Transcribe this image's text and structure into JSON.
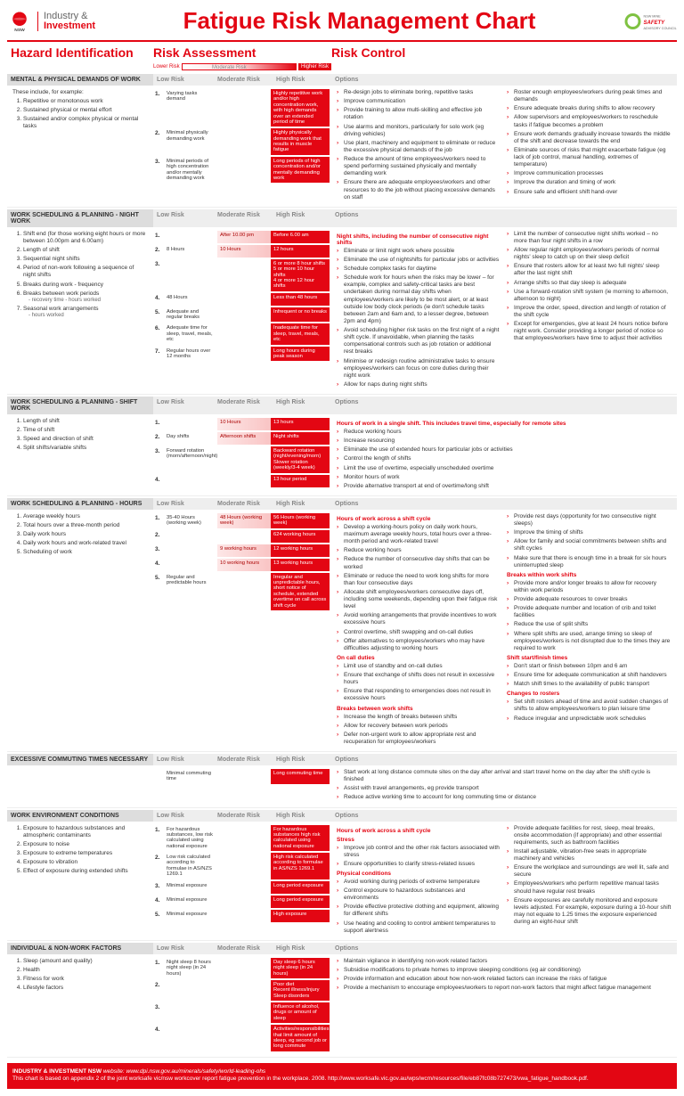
{
  "header": {
    "org_line1": "Industry &",
    "org_line2": "Investment",
    "gov": "NSW",
    "title": "Fatigue Risk Management Chart",
    "council": "NSW MINE SAFETY ADVISORY COUNCIL"
  },
  "section_labels": {
    "hi": "Hazard Identification",
    "ra": "Risk Assessment",
    "rc": "Risk Control",
    "low": "Lower Risk",
    "mod": "Moderate Risk",
    "high": "Higher Risk",
    "col_low": "Low Risk",
    "col_mod": "Moderate Risk",
    "col_high": "High Risk",
    "options": "Options"
  },
  "cats": [
    {
      "name": "MENTAL & PHYSICAL DEMANDS OF WORK",
      "hi_intro": "These include, for example:",
      "hi": [
        {
          "t": "Repetitive or monotonous work"
        },
        {
          "t": "Sustained physical or mental effort"
        },
        {
          "t": "Sustained and/or complex physical or mental tasks"
        }
      ],
      "ra": [
        {
          "n": "1.",
          "low": "Varying tasks demand",
          "mod": "",
          "high": "Highly repetitive work and/or high concentration work, with high demands over an extended period of time"
        },
        {
          "n": "2.",
          "low": "Minimal physically demanding work",
          "mod": "",
          "high": "Highly physically demanding work that results in muscle fatigue"
        },
        {
          "n": "3.",
          "low": "Minimal periods of high concentration and/or mentally demanding work",
          "mod": "",
          "high": "Long periods of high concentration and/or mentally demanding work"
        }
      ],
      "rc_l": [
        "Re-design jobs to eliminate boring, repetitive tasks",
        "Improve communication",
        "Provide training to allow multi-skilling and effective job rotation",
        "Use alarms and monitors, particularly for solo work (eg driving vehicles)",
        "Use plant, machinery and equipment to eliminate or reduce the excessive physical demands of the job",
        "Reduce the amount of time employees/workers need to spend performing sustained physically and mentally demanding work",
        "Ensure there are adequate employees/workers and other resources to do the job without placing excessive demands on staff"
      ],
      "rc_r": [
        "Roster enough employees/workers during peak times and demands",
        "Ensure adequate breaks during shifts to allow recovery",
        "Allow supervisors and employees/workers to reschedule tasks if fatigue becomes a problem",
        "Ensure work demands gradually increase towards the middle of the shift and decrease towards the end",
        "Eliminate sources of risks that might exacerbate fatigue (eg lack of job control, manual handling, extremes of temperature)",
        "Improve communication processes",
        "Improve the duration and timing of work",
        "Ensure safe and efficient shift hand-over"
      ]
    },
    {
      "name": "WORK SCHEDULING & PLANNING - NIGHT WORK",
      "hi": [
        {
          "t": "Shift end (for those working eight hours or more between 10.00pm and 6.00am)"
        },
        {
          "t": "Length of shift"
        },
        {
          "t": "Sequential night shifts"
        },
        {
          "t": "Period of non-work following a sequence of night shifts"
        },
        {
          "t": "Breaks during work - frequency"
        },
        {
          "t": "Breaks between work periods",
          "sub": "- recovery time\n- hours worked"
        },
        {
          "t": "Seasonal work arrangements",
          "sub": "- hours worked"
        }
      ],
      "ra": [
        {
          "n": "1.",
          "low": "",
          "mod": "After 10.00 pm",
          "high": "Before 6.00 am"
        },
        {
          "n": "2.",
          "low": "8 Hours",
          "mod": "10 Hours",
          "high": "12 hours"
        },
        {
          "n": "3.",
          "low": "",
          "mod": "",
          "high": "6 or more 8 hour shifts\n5 or more 10 hour shifts\n4 or more 12 hour shifts"
        },
        {
          "n": "4.",
          "low": "48 Hours",
          "mod": "",
          "high": "Less than 48 hours"
        },
        {
          "n": "5.",
          "low": "Adequate and regular breaks",
          "mod": "",
          "high": "Infrequent or no breaks"
        },
        {
          "n": "6.",
          "low": "Adequate time for sleep, travel, meals, etc",
          "mod": "",
          "high": "Inadequate time for sleep, travel, meals, etc"
        },
        {
          "n": "7.",
          "low": "Regular hours over 12 months",
          "mod": "",
          "high": "Long hours during peak season"
        }
      ],
      "rc_sub_l": "Night shifts, including the number of consecutive night shifts",
      "rc_l": [
        "Eliminate or limit night work where possible",
        "Eliminate the use of nightshifts for particular jobs or activities",
        "Schedule complex tasks for daytime",
        "Schedule work for hours when the risks may be lower – for example, complex and safety-critical tasks are best undertaken during normal day shifts when employees/workers are likely to be most alert, or at least outside low body clock periods (ie don't schedule tasks between 2am and 6am and, to a lesser degree, between 2pm and 4pm)",
        "Avoid scheduling higher risk tasks on the first night of a night shift cycle. If unavoidable, when planning the tasks compensational controls such as job rotation or additional rest breaks",
        "Minimise or redesign routine administrative tasks to ensure employees/workers can focus on core duties during their night work",
        "Allow for naps during night shifts"
      ],
      "rc_r": [
        "Limit the number of consecutive night shifts worked – no more than four night shifts in a row",
        "Allow regular night employees/workers periods of normal nights' sleep to catch up on their sleep deficit",
        "Ensure that rosters allow for at least two full nights' sleep after the last night shift",
        "Arrange shifts so that day sleep is adequate",
        "Use a forward-rotation shift system (ie morning to afternoon, afternoon to night)",
        "Improve the order, speed, direction and length of rotation of the shift cycle",
        "Except for emergencies, give at least 24 hours notice before night work. Consider providing a longer period of notice so that employees/workers have time to adjust their activities"
      ]
    },
    {
      "name": "WORK SCHEDULING & PLANNING - SHIFT WORK",
      "hi": [
        {
          "t": "Length of shift"
        },
        {
          "t": "Time of shift"
        },
        {
          "t": "Speed and direction of shift"
        },
        {
          "t": "Split shifts/variable shifts"
        }
      ],
      "ra": [
        {
          "n": "1.",
          "low": "",
          "mod": "10 Hours",
          "high": "13 hours"
        },
        {
          "n": "2.",
          "low": "Day shifts",
          "mod": "Afternoon shifts",
          "high": "Night shifts"
        },
        {
          "n": "3.",
          "low": "Forward rotation (morn/afternoon/night)",
          "mod": "",
          "high": "Backward rotation (night/evening/morn)\nSlower rotation (weekly/3-4 week)"
        },
        {
          "n": "4.",
          "low": "",
          "mod": "",
          "high": "13 hour period"
        }
      ],
      "rc_sub_l": "Hours of work in a single shift. This includes travel time, especially for remote sites",
      "rc_l": [
        "Reduce working hours",
        "Increase resourcing",
        "Eliminate the use of extended hours for particular jobs or activities",
        "Control the length of shifts",
        "Limit the use of overtime, especially unscheduled overtime",
        "Monitor hours of work",
        "Provide alternative transport at end of overtime/long shift"
      ],
      "rc_r": []
    },
    {
      "name": "WORK SCHEDULING & PLANNING - HOURS",
      "hi": [
        {
          "t": "Average weekly hours"
        },
        {
          "t": "Total hours over a three-month period"
        },
        {
          "t": "Daily work hours"
        },
        {
          "t": "Daily work hours and work-related travel"
        },
        {
          "t": "Scheduling of work"
        }
      ],
      "ra": [
        {
          "n": "1.",
          "low": "35-40 Hours (working week)",
          "mod": "48 Hours (working week)",
          "high": "56 Hours (working week)"
        },
        {
          "n": "2.",
          "low": "",
          "mod": "",
          "high": "624 working hours"
        },
        {
          "n": "3.",
          "low": "",
          "mod": "9 working hours",
          "high": "12 working hours"
        },
        {
          "n": "4.",
          "low": "",
          "mod": "10 working hours",
          "high": "13 working hours"
        },
        {
          "n": "5.",
          "low": "Regular and predictable hours",
          "mod": "",
          "high": "Irregular and unpredictable hours, short notice of schedule, extended overtime on call across shift cycle"
        }
      ],
      "rc_sub_l": "Hours of work across a shift cycle",
      "rc_l": [
        "Develop a working-hours policy on daily work hours, maximum average weekly hours, total hours over a three-month period and work-related travel",
        "Reduce working hours",
        "Reduce the number of consecutive day shifts that can be worked",
        "Eliminate or reduce the need to work long shifts for more than four consecutive days",
        "Allocate shift employees/workers consecutive days off, including some weekends, depending upon their fatigue risk level",
        "Avoid working arrangements that provide incentives to work excessive hours",
        "Control overtime, shift swapping and on-call duties",
        "Offer alternatives to employees/workers who may have difficulties adjusting to working hours"
      ],
      "rc_l_subs": [
        {
          "h": "On call duties",
          "items": [
            "Limit use of standby and on-call duties",
            "Ensure that exchange of shifts does not result in excessive hours",
            "Ensure that responding to emergencies does not result in excessive hours"
          ]
        },
        {
          "h": "Breaks between work shifts",
          "items": [
            "Increase the length of breaks between shifts",
            "Allow for recovery between work periods",
            "Defer non-urgent work to allow appropriate rest and recuperation for employees/workers"
          ]
        }
      ],
      "rc_r": [
        "Provide rest days (opportunity for two consecutive night sleeps)",
        "Improve the timing of shifts",
        "Allow for family and social commitments between shifts and shift cycles",
        "Make sure that there is enough time in a break for six hours uninterrupted sleep"
      ],
      "rc_r_subs": [
        {
          "h": "Breaks within work shifts",
          "items": [
            "Provide more and/or longer breaks to allow for recovery within work periods",
            "Provide adequate resources to cover breaks",
            "Provide adequate number and location of crib and toilet facilities",
            "Reduce the use of split shifts",
            "Where split shifts are used, arrange timing so sleep of employees/workers is not disrupted due to the times they are required to work"
          ]
        },
        {
          "h": "Shift start/finish times",
          "items": [
            "Don't start or finish between 10pm and 6 am",
            "Ensure time for adequate communication at shift handovers",
            "Match shift times to the availability of public transport"
          ]
        },
        {
          "h": "Changes to rosters",
          "items": [
            "Set shift rosters ahead of time and avoid sudden changes of shifts to allow employees/workers to plan leisure time",
            "Reduce irregular and unpredictable work schedules"
          ]
        }
      ]
    },
    {
      "name": "EXCESSIVE COMMUTING TIMES NECESSARY",
      "hi": [],
      "ra": [
        {
          "n": "",
          "low": "Minimal commuting time",
          "mod": "",
          "high": "Long commuting time"
        }
      ],
      "rc_l": [
        "Start work at long distance commute sites on the day after arrival and start travel home on the day after the shift cycle is finished",
        "Assist with travel arrangements, eg provide transport",
        "Reduce active working time to account for long commuting time or distance"
      ],
      "rc_r": []
    },
    {
      "name": "WORK ENVIRONMENT CONDITIONS",
      "hi": [
        {
          "t": "Exposure to hazardous substances and atmospheric contaminants"
        },
        {
          "t": "Exposure to noise"
        },
        {
          "t": "Exposure to extreme temperatures"
        },
        {
          "t": "Exposure to vibration"
        },
        {
          "t": "Effect of exposure during extended shifts"
        }
      ],
      "ra": [
        {
          "n": "1.",
          "low": "For hazardous substances, low risk calculated using national exposure",
          "mod": "",
          "high": "For hazardous substances high risk calculated using national exposure"
        },
        {
          "n": "2.",
          "low": "Low risk calculated according to formulae in AS/NZS 1269.1",
          "mod": "",
          "high": "High risk calculated according to formulae in AS/NZS 1269.1"
        },
        {
          "n": "3.",
          "low": "Minimal exposure",
          "mod": "",
          "high": "Long period exposure"
        },
        {
          "n": "4.",
          "low": "Minimal exposure",
          "mod": "",
          "high": "Long period exposure"
        },
        {
          "n": "5.",
          "low": "Minimal exposure",
          "mod": "",
          "high": "High exposure"
        }
      ],
      "rc_sub_l": "Hours of work across a shift cycle",
      "rc_l_subs": [
        {
          "h": "Stress",
          "items": [
            "Improve job control and the other risk factors associated with stress",
            "Ensure opportunities to clarify stress-related issues"
          ]
        },
        {
          "h": "Physical conditions",
          "items": [
            "Avoid working during periods of extreme temperature",
            "Control exposure to hazardous substances and environments",
            "Provide effective protective clothing and equipment, allowing for different shifts",
            "Use heating and cooling to control ambient temperatures to support alertness"
          ]
        }
      ],
      "rc_l": [],
      "rc_r": [
        "Provide adequate facilities for rest, sleep, meal breaks, onsite accommodation (if appropriate) and other essential requirements, such as bathroom facilities",
        "Install adjustable, vibration-free seats in appropriate machinery and vehicles",
        "Ensure the workplace and surroundings are well lit, safe and secure",
        "Employees/workers who perform repetitive manual tasks should have regular rest breaks",
        "Ensure exposures are carefully monitored and exposure levels adjusted. For example, exposure during a 10-hour shift may not equate to 1.25 times the exposure experienced during an eight-hour shift"
      ]
    },
    {
      "name": "INDIVIDUAL & NON-WORK FACTORS",
      "hi": [
        {
          "t": "Sleep (amount and quality)"
        },
        {
          "t": "Health"
        },
        {
          "t": "Fitness for work"
        },
        {
          "t": "Lifestyle factors"
        }
      ],
      "ra": [
        {
          "n": "1.",
          "low": "Night sleep 8 hours night sleep (in 24 hours)",
          "mod": "",
          "high": "Day sleep 6 hours night sleep (in 24 hours)"
        },
        {
          "n": "2.",
          "low": "",
          "mod": "",
          "high": "Poor diet\nRecent illness/injury\nSleep disorders"
        },
        {
          "n": "3.",
          "low": "",
          "mod": "",
          "high": "Influence of alcohol, drugs or amount of sleep"
        },
        {
          "n": "4.",
          "low": "",
          "mod": "",
          "high": "Activities/responsibilities that limit amount of sleep, eg second job or long commute"
        }
      ],
      "rc_l": [
        "Maintain vigilance in identifying non-work related factors",
        "Subsidise modifications to private homes to improve sleeping conditions (eg air conditioning)",
        "Provide information and education about how non-work related factors can increase the risks of fatigue",
        "Provide a mechanism to encourage employees/workers to report non-work factors that might affect fatigue management"
      ],
      "rc_r": []
    }
  ],
  "footer": {
    "line1_label": "INDUSTRY & INVESTMENT NSW",
    "line1_web": "website: www.dpi.nsw.gov.au/minerals/safety/world-leading-ohs",
    "line2": "This chart is based on appendix 2 of the joint worksafe vic/nsw workcover report fatigue prevention in the workplace. 2008. http://www.worksafe.vic.gov.au/wps/wcm/resources/file/eb87fc08b727473/vwa_fatigue_handbook.pdf."
  },
  "colors": {
    "brand": "#e30613",
    "grad_mid": "#f9c4c4",
    "grad_lo": "#fde7e7",
    "grey_head": "#ddd"
  }
}
